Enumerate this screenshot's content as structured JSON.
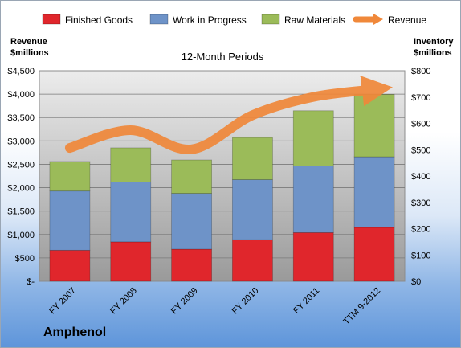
{
  "chart_data": {
    "type": "bar",
    "title": "12-Month Periods",
    "company": "Amphenol",
    "left_axis_label": [
      "Revenue",
      "$millions"
    ],
    "right_axis_label": [
      "Inventory",
      "$millions"
    ],
    "categories": [
      "FY 2007",
      "FY 2008",
      "FY 2009",
      "FY 2010",
      "FY 2011",
      "TTM 9-2012"
    ],
    "left_axis": {
      "range": [
        0,
        4500
      ],
      "ticks": [
        "$-",
        "$500",
        "$1,000",
        "$1,500",
        "$2,000",
        "$2,500",
        "$3,000",
        "$3,500",
        "$4,000",
        "$4,500"
      ]
    },
    "right_axis": {
      "range": [
        0,
        800
      ],
      "ticks": [
        "$0",
        "$100",
        "$200",
        "$300",
        "$400",
        "$500",
        "$600",
        "$700",
        "$800"
      ]
    },
    "series": [
      {
        "name": "Finished Goods",
        "type": "stacked-bar",
        "axis": "right",
        "color": "#e0262c",
        "values": [
          118,
          150,
          122,
          158,
          185,
          205
        ]
      },
      {
        "name": "Work in Progress",
        "type": "stacked-bar",
        "axis": "right",
        "color": "#6e93c8",
        "values": [
          225,
          227,
          212,
          228,
          253,
          268
        ]
      },
      {
        "name": "Raw Materials",
        "type": "stacked-bar",
        "axis": "right",
        "color": "#9bbb59",
        "values": [
          112,
          130,
          127,
          160,
          210,
          237
        ]
      },
      {
        "name": "Revenue",
        "type": "line",
        "axis": "left",
        "color": "#f0883a",
        "values": [
          2850,
          3230,
          2820,
          3550,
          3940,
          4100
        ]
      }
    ],
    "grid": true,
    "legend": "top"
  }
}
